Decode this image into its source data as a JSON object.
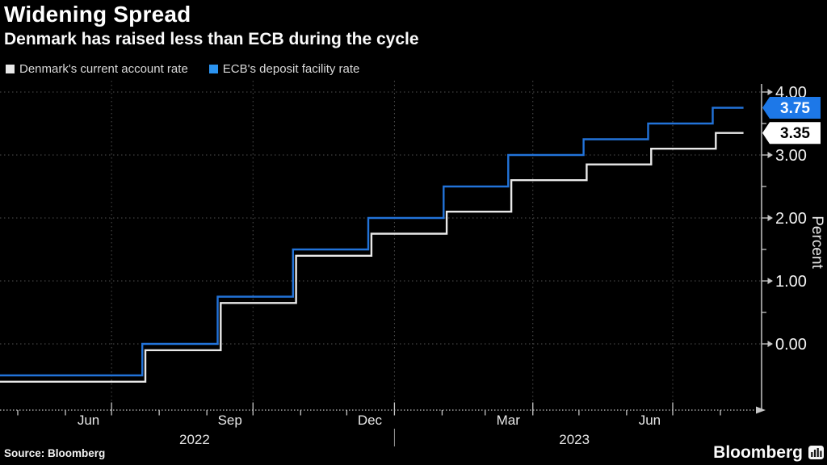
{
  "header": {
    "title": "Widening Spread",
    "subtitle": "Denmark has raised less than ECB during the cycle"
  },
  "legend": {
    "items": [
      {
        "label": "Denmark's current account rate",
        "color": "#e9e9e9"
      },
      {
        "label": "ECB's deposit facility rate",
        "color": "#2b93f0"
      }
    ]
  },
  "footer": {
    "source": "Source: Bloomberg",
    "brand": "Bloomberg"
  },
  "chart_data": {
    "type": "line",
    "step": true,
    "title": "Widening Spread",
    "subtitle": "Denmark has raised less than ECB during the cycle",
    "ylabel": "Percent",
    "ylim": [
      -1.05,
      4.15
    ],
    "yticks": [
      0,
      1,
      2,
      3,
      4
    ],
    "ytick_labels": [
      "0.00",
      "1.00",
      "2.00",
      "3.00",
      "4.00"
    ],
    "yticks_minor": [
      0.5,
      1.5,
      2.5,
      3.5
    ],
    "grid": "dotted",
    "legend_position": "top-left",
    "x_domain": [
      "2022-04-19",
      "2023-08-27"
    ],
    "month_tick_dates": [
      "2022-05-01",
      "2022-06-01",
      "2022-07-01",
      "2022-08-01",
      "2022-09-01",
      "2022-10-01",
      "2022-11-01",
      "2022-12-01",
      "2023-01-01",
      "2023-02-01",
      "2023-03-01",
      "2023-04-01",
      "2023-05-01",
      "2023-06-01",
      "2023-07-01",
      "2023-08-01"
    ],
    "quarter_gridline_dates": [
      "2022-07-01",
      "2022-10-01",
      "2023-01-01",
      "2023-04-01",
      "2023-07-01"
    ],
    "month_labels": [
      {
        "label": "Jun",
        "date": "2022-06-16"
      },
      {
        "label": "Sep",
        "date": "2022-09-16"
      },
      {
        "label": "Dec",
        "date": "2022-12-16"
      },
      {
        "label": "Mar",
        "date": "2023-03-16"
      },
      {
        "label": "Jun",
        "date": "2023-06-16"
      }
    ],
    "year_labels": [
      {
        "label": "2022",
        "date": "2022-08-24"
      },
      {
        "label": "2023",
        "date": "2023-04-28"
      }
    ],
    "year_separator_date": "2023-01-01",
    "colors": {
      "grid": "#4f4f4f",
      "axis": "#c6c6c6",
      "tick_label": "#f2f2f2",
      "month_label": "#e7e7e7",
      "separator": "#9a9a9a"
    },
    "series": [
      {
        "name": "Denmark's current account rate",
        "color": "#e9e9e9",
        "badge": {
          "bg": "#ffffff",
          "fg": "#000000",
          "label": "3.35"
        },
        "end_date": "2023-08-16",
        "points": [
          [
            "2022-04-19",
            -0.6
          ],
          [
            "2022-07-23",
            -0.1
          ],
          [
            "2022-09-10",
            0.65
          ],
          [
            "2022-10-29",
            1.4
          ],
          [
            "2022-12-17",
            1.75
          ],
          [
            "2023-02-04",
            2.1
          ],
          [
            "2023-03-18",
            2.6
          ],
          [
            "2023-05-06",
            2.85
          ],
          [
            "2023-06-17",
            3.1
          ],
          [
            "2023-07-29",
            3.35
          ]
        ]
      },
      {
        "name": "ECB's deposit facility rate",
        "color": "#2273d9",
        "badge": {
          "bg": "#1d78e8",
          "fg": "#ffffff",
          "label": "3.75"
        },
        "end_date": "2023-08-16",
        "points": [
          [
            "2022-04-19",
            -0.5
          ],
          [
            "2022-07-21",
            0.0
          ],
          [
            "2022-09-08",
            0.75
          ],
          [
            "2022-10-27",
            1.5
          ],
          [
            "2022-12-15",
            2.0
          ],
          [
            "2023-02-02",
            2.5
          ],
          [
            "2023-03-16",
            3.0
          ],
          [
            "2023-05-04",
            3.25
          ],
          [
            "2023-06-15",
            3.5
          ],
          [
            "2023-07-27",
            3.75
          ]
        ]
      }
    ]
  }
}
